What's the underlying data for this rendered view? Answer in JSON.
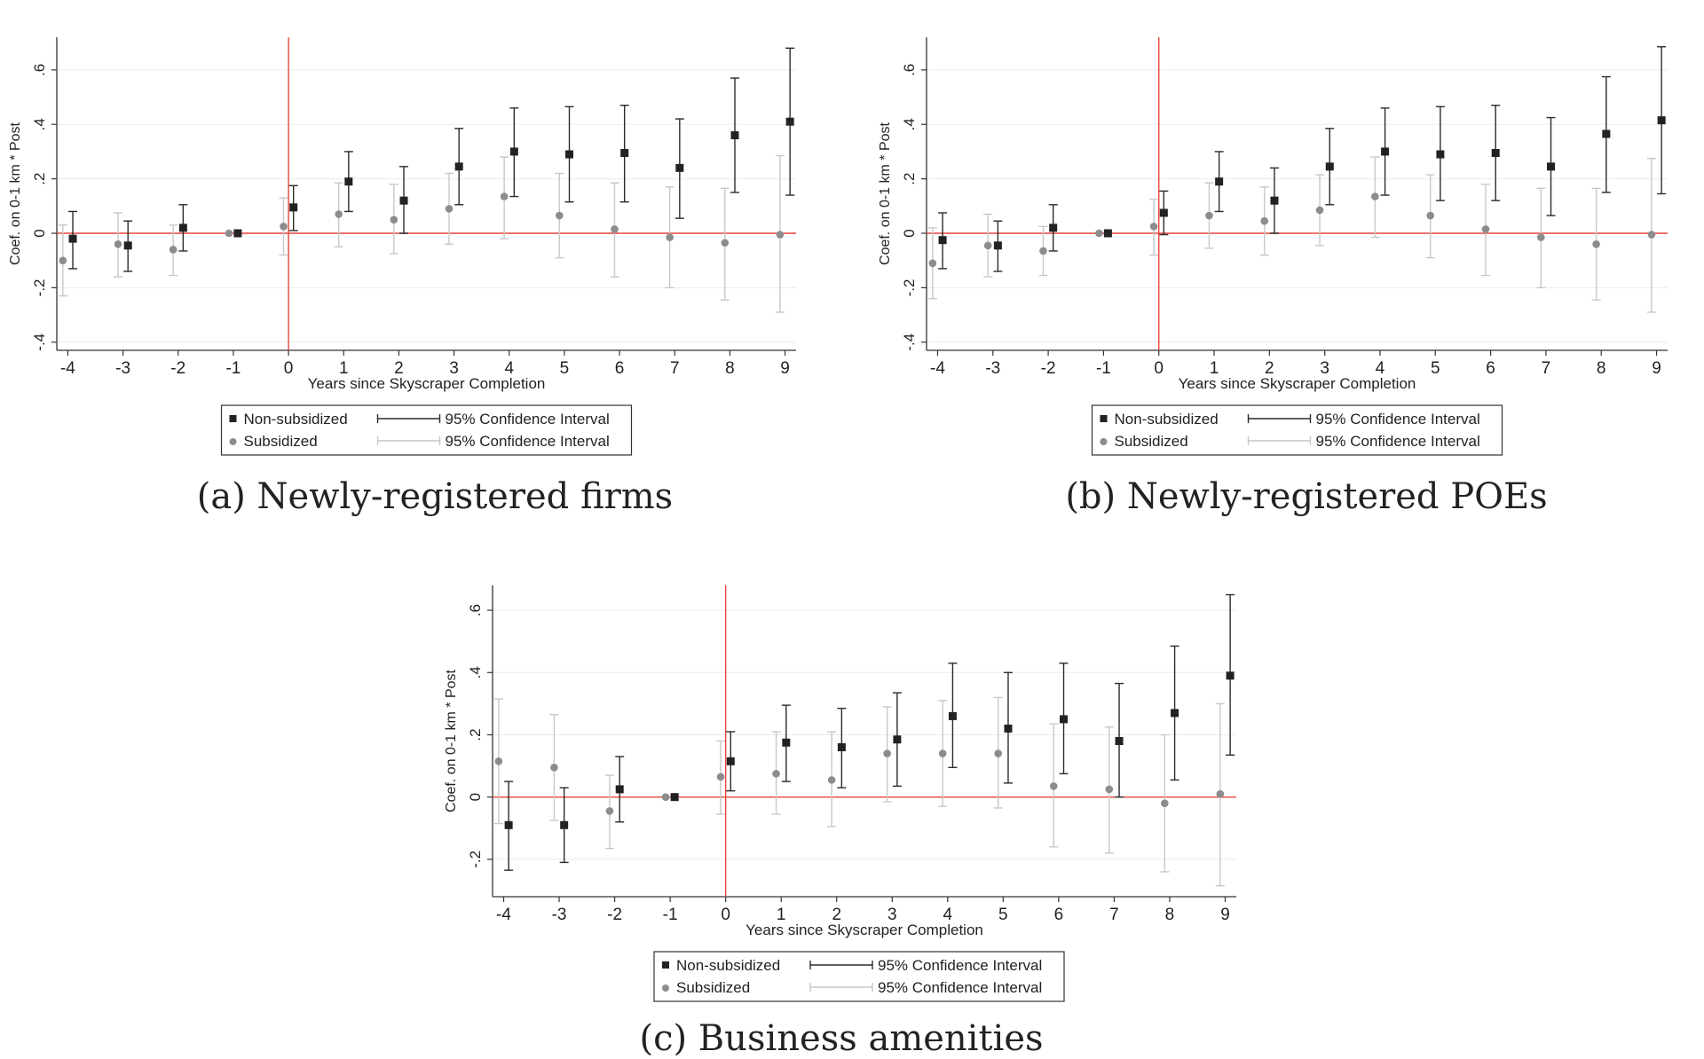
{
  "chart_data": [
    {
      "type": "scatter",
      "caption": "(a) Newly-registered firms",
      "xlabel": "Years since Skyscraper Completion",
      "ylabel": "Coef. on 0-1 km * Post",
      "x": [
        -4,
        -3,
        -2,
        -1,
        0,
        1,
        2,
        3,
        4,
        5,
        6,
        7,
        8,
        9
      ],
      "xlim": [
        -4.2,
        9.2
      ],
      "ylim": [
        -0.43,
        0.72
      ],
      "yticks": [
        -0.4,
        -0.2,
        0,
        0.2,
        0.4,
        0.6
      ],
      "ytick_labels": [
        "-.4",
        "-.2",
        "0",
        ".2",
        ".4",
        ".6"
      ],
      "reference_lines": {
        "x": 0,
        "y": 0,
        "color": "#e8453c"
      },
      "series": [
        {
          "name": "Non-subsidized",
          "marker": "square",
          "color": "#222222",
          "values": [
            -0.02,
            -0.045,
            0.02,
            0,
            0.095,
            0.19,
            0.12,
            0.245,
            0.3,
            0.29,
            0.295,
            0.24,
            0.36,
            0.41
          ],
          "ci_low": [
            -0.13,
            -0.14,
            -0.065,
            0,
            0.01,
            0.08,
            0.0,
            0.105,
            0.135,
            0.115,
            0.115,
            0.055,
            0.15,
            0.14
          ],
          "ci_high": [
            0.08,
            0.045,
            0.105,
            0,
            0.175,
            0.3,
            0.245,
            0.385,
            0.46,
            0.465,
            0.47,
            0.42,
            0.57,
            0.68
          ]
        },
        {
          "name": "Subsidized",
          "marker": "circle",
          "color": "#8c8c8c",
          "values": [
            -0.1,
            -0.04,
            -0.06,
            0,
            0.025,
            0.07,
            0.05,
            0.09,
            0.135,
            0.065,
            0.015,
            -0.015,
            -0.035,
            -0.005
          ],
          "ci_low": [
            -0.23,
            -0.16,
            -0.155,
            0,
            -0.08,
            -0.05,
            -0.075,
            -0.04,
            -0.02,
            -0.09,
            -0.16,
            -0.2,
            -0.245,
            -0.29
          ],
          "ci_high": [
            0.03,
            0.075,
            0.03,
            0,
            0.13,
            0.185,
            0.18,
            0.22,
            0.28,
            0.22,
            0.185,
            0.17,
            0.165,
            0.285
          ]
        }
      ],
      "legend": {
        "position": "bottom",
        "items": [
          "Non-subsidized",
          "95% Confidence Interval",
          "Subsidized",
          "95% Confidence Interval"
        ]
      }
    },
    {
      "type": "scatter",
      "caption": "(b) Newly-registered POEs",
      "xlabel": "Years since Skyscraper Completion",
      "ylabel": "Coef. on 0-1 km * Post",
      "x": [
        -4,
        -3,
        -2,
        -1,
        0,
        1,
        2,
        3,
        4,
        5,
        6,
        7,
        8,
        9
      ],
      "xlim": [
        -4.2,
        9.2
      ],
      "ylim": [
        -0.43,
        0.72
      ],
      "yticks": [
        -0.4,
        -0.2,
        0,
        0.2,
        0.4,
        0.6
      ],
      "ytick_labels": [
        "-.4",
        "-.2",
        "0",
        ".2",
        ".4",
        ".6"
      ],
      "reference_lines": {
        "x": 0,
        "y": 0,
        "color": "#e8453c"
      },
      "series": [
        {
          "name": "Non-subsidized",
          "marker": "square",
          "color": "#222222",
          "values": [
            -0.025,
            -0.045,
            0.02,
            0,
            0.075,
            0.19,
            0.12,
            0.245,
            0.3,
            0.29,
            0.295,
            0.245,
            0.365,
            0.415
          ],
          "ci_low": [
            -0.13,
            -0.14,
            -0.065,
            0,
            -0.005,
            0.08,
            0.0,
            0.105,
            0.14,
            0.12,
            0.12,
            0.065,
            0.15,
            0.145
          ],
          "ci_high": [
            0.075,
            0.045,
            0.105,
            0,
            0.155,
            0.3,
            0.24,
            0.385,
            0.46,
            0.465,
            0.47,
            0.425,
            0.575,
            0.685
          ]
        },
        {
          "name": "Subsidized",
          "marker": "circle",
          "color": "#8c8c8c",
          "values": [
            -0.11,
            -0.045,
            -0.065,
            0,
            0.025,
            0.065,
            0.045,
            0.085,
            0.135,
            0.065,
            0.015,
            -0.015,
            -0.04,
            -0.005
          ],
          "ci_low": [
            -0.24,
            -0.16,
            -0.155,
            0,
            -0.08,
            -0.055,
            -0.08,
            -0.045,
            -0.015,
            -0.09,
            -0.155,
            -0.2,
            -0.245,
            -0.29
          ],
          "ci_high": [
            0.02,
            0.07,
            0.025,
            0,
            0.125,
            0.185,
            0.17,
            0.215,
            0.28,
            0.215,
            0.18,
            0.165,
            0.165,
            0.275
          ]
        }
      ],
      "legend": {
        "position": "bottom",
        "items": [
          "Non-subsidized",
          "95% Confidence Interval",
          "Subsidized",
          "95% Confidence Interval"
        ]
      }
    },
    {
      "type": "scatter",
      "caption": "(c) Business amenities",
      "xlabel": "Years since Skyscraper Completion",
      "ylabel": "Coef. on 0-1 km * Post",
      "x": [
        -4,
        -3,
        -2,
        -1,
        0,
        1,
        2,
        3,
        4,
        5,
        6,
        7,
        8,
        9
      ],
      "xlim": [
        -4.2,
        9.2
      ],
      "ylim": [
        -0.32,
        0.68
      ],
      "yticks": [
        -0.2,
        0,
        0.2,
        0.4,
        0.6
      ],
      "ytick_labels": [
        "-.2",
        "0",
        ".2",
        ".4",
        ".6"
      ],
      "reference_lines": {
        "x": 0,
        "y": 0,
        "color": "#e8453c"
      },
      "series": [
        {
          "name": "Non-subsidized",
          "marker": "square",
          "color": "#222222",
          "values": [
            -0.09,
            -0.09,
            0.025,
            0,
            0.115,
            0.175,
            0.16,
            0.185,
            0.26,
            0.22,
            0.25,
            0.18,
            0.27,
            0.39
          ],
          "ci_low": [
            -0.235,
            -0.21,
            -0.08,
            0,
            0.02,
            0.05,
            0.03,
            0.035,
            0.095,
            0.045,
            0.075,
            0.0,
            0.055,
            0.135
          ],
          "ci_high": [
            0.05,
            0.03,
            0.13,
            0,
            0.21,
            0.295,
            0.285,
            0.335,
            0.43,
            0.4,
            0.43,
            0.365,
            0.485,
            0.65
          ]
        },
        {
          "name": "Subsidized",
          "marker": "circle",
          "color": "#8c8c8c",
          "values": [
            0.115,
            0.095,
            -0.045,
            0,
            0.065,
            0.075,
            0.055,
            0.14,
            0.14,
            0.14,
            0.035,
            0.025,
            -0.02,
            0.01
          ],
          "ci_low": [
            -0.085,
            -0.075,
            -0.165,
            0,
            -0.055,
            -0.055,
            -0.095,
            -0.015,
            -0.03,
            -0.035,
            -0.16,
            -0.18,
            -0.24,
            -0.285
          ],
          "ci_high": [
            0.315,
            0.265,
            0.07,
            0,
            0.18,
            0.21,
            0.21,
            0.29,
            0.31,
            0.32,
            0.235,
            0.225,
            0.2,
            0.3
          ]
        }
      ],
      "legend": {
        "position": "bottom",
        "items": [
          "Non-subsidized",
          "95% Confidence Interval",
          "Subsidized",
          "95% Confidence Interval"
        ]
      }
    }
  ]
}
